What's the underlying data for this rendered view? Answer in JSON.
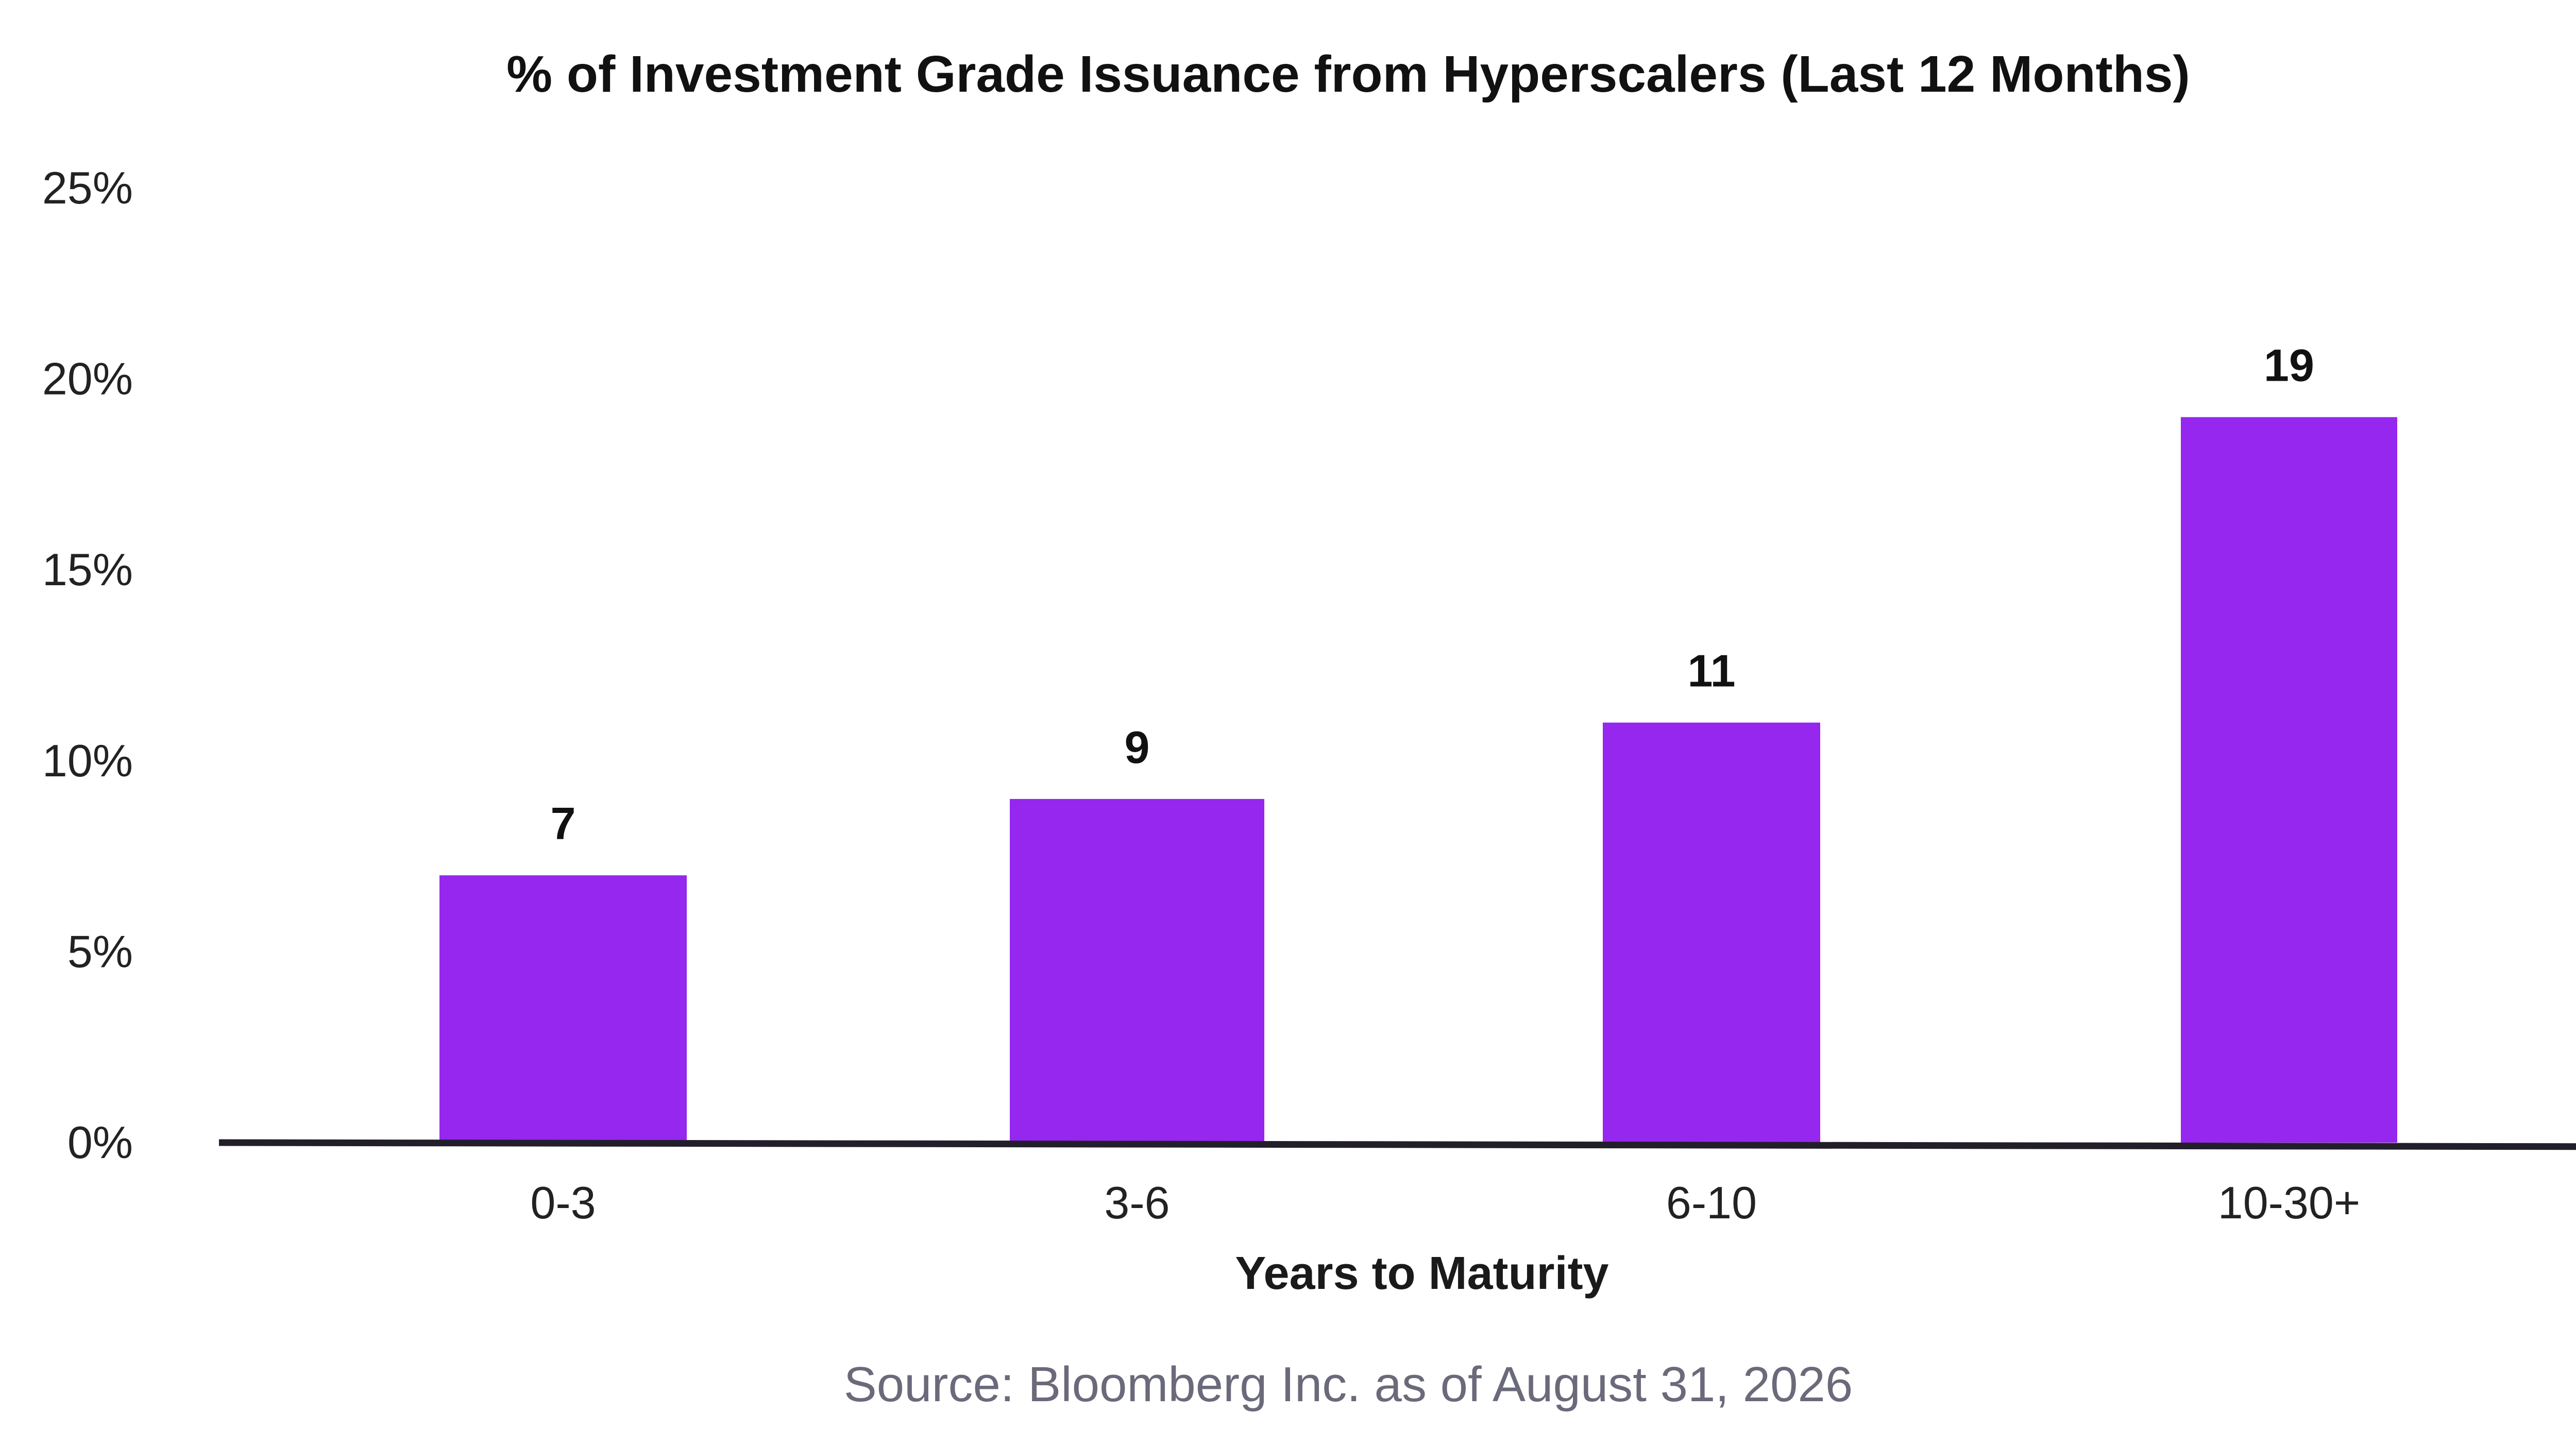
{
  "colors": {
    "bar": "#9527EE",
    "axis_line": "#231F2A",
    "source_text": "#6A6A7A"
  },
  "chart_data": {
    "type": "bar",
    "title": "% of Investment Grade Issuance from Hyperscalers (Last 12 Months)",
    "xlabel": "Years to Maturity",
    "ylabel": "",
    "categories": [
      "0-3",
      "3-6",
      "6-10",
      "10-30+"
    ],
    "values": [
      7,
      9,
      11,
      19
    ],
    "data_labels": [
      "7",
      "9",
      "11",
      "19"
    ],
    "ylim": [
      0,
      25
    ],
    "yticks": [
      0,
      5,
      10,
      15,
      20,
      25
    ],
    "ytick_labels": [
      "0%",
      "5%",
      "10%",
      "15%",
      "20%",
      "25%"
    ],
    "grid": false,
    "legend": "none"
  },
  "source": "Source: Bloomberg Inc. as of August 31, 2026"
}
